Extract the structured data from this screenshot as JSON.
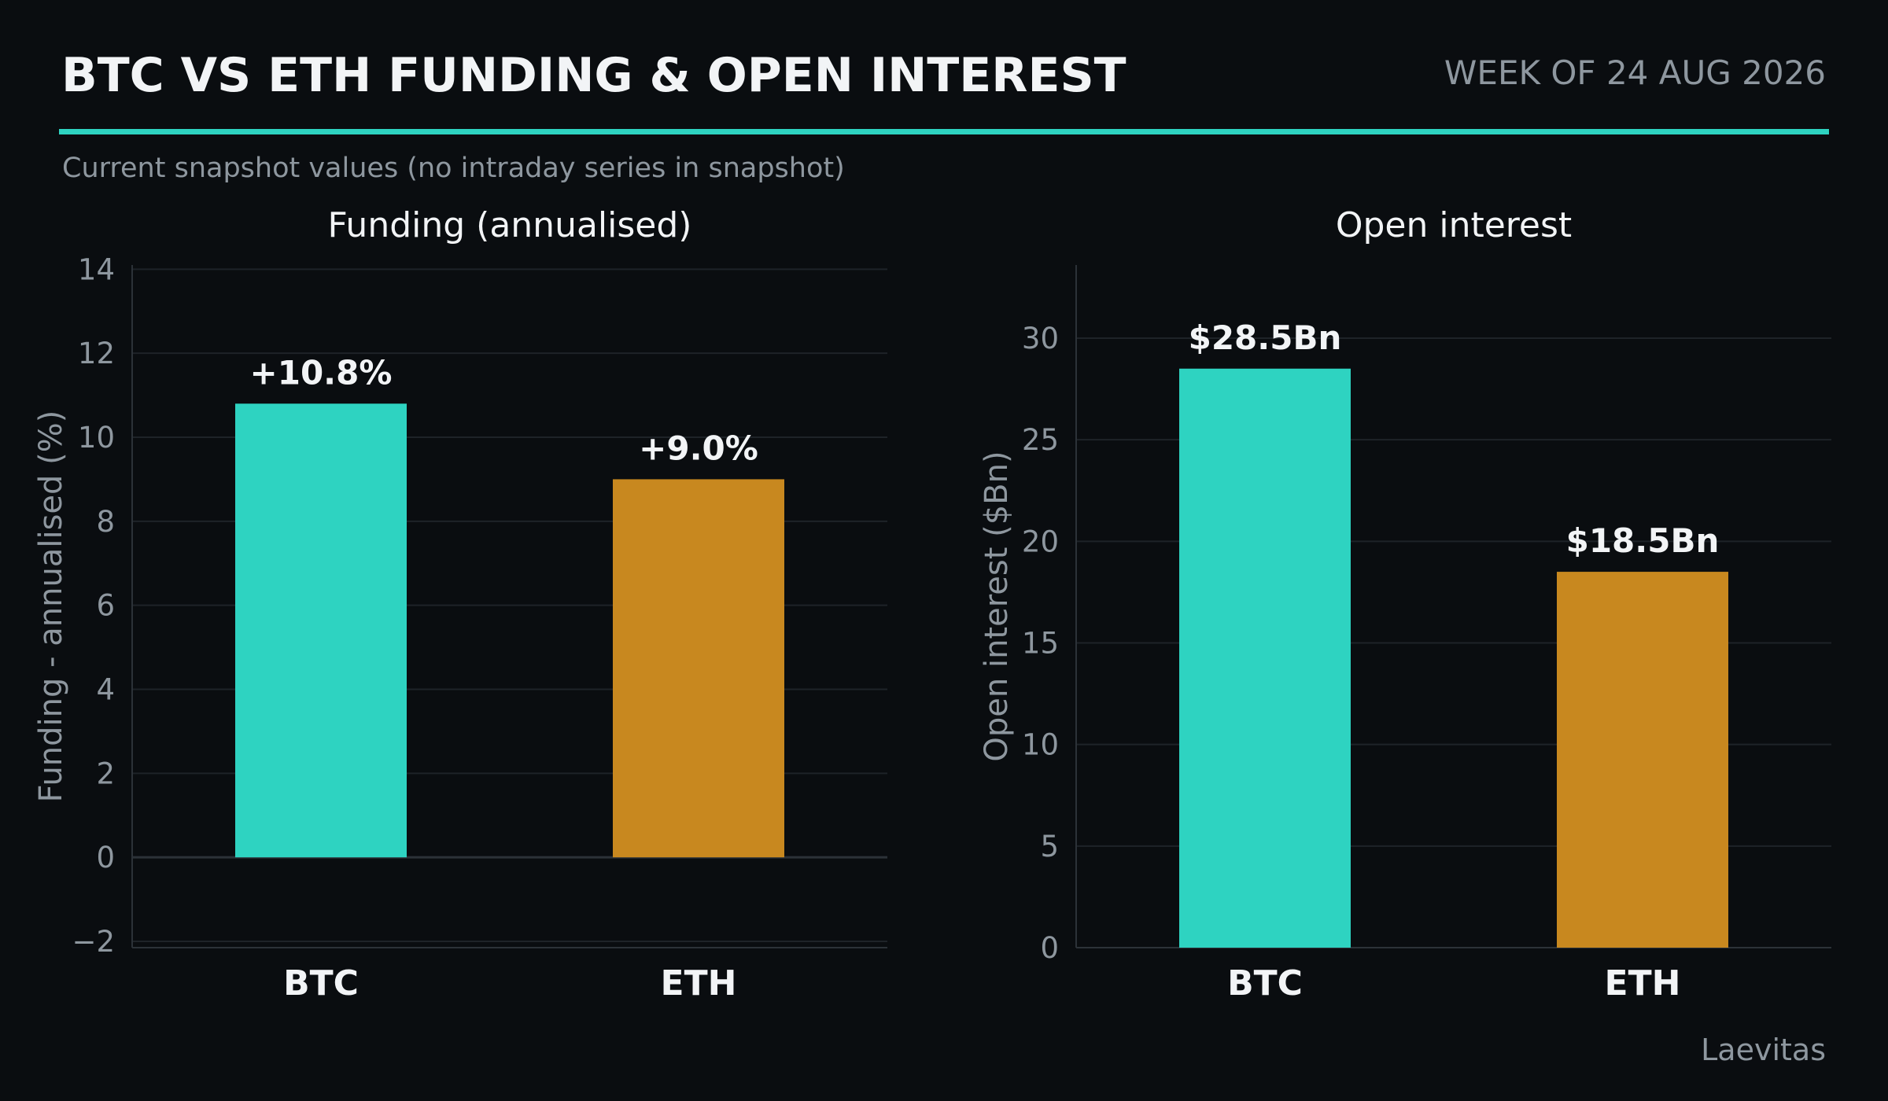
{
  "header": {
    "title": "BTC VS ETH FUNDING & OPEN INTEREST",
    "date_label": "WEEK OF 24 AUG 2026",
    "subtitle": "Current snapshot values (no intraday series in snapshot)"
  },
  "footer": {
    "source": "Laevitas"
  },
  "colors": {
    "background": "#0a0d10",
    "accent": "#2ed3c1",
    "btc": "#2ed3c1",
    "eth": "#c8881f",
    "text": "#f2f4f6",
    "muted": "#8e979f",
    "grid": "#1e2328",
    "axis": "#2c3238"
  },
  "chart_data": [
    {
      "type": "bar",
      "title": "Funding (annualised)",
      "xlabel": "",
      "ylabel": "Funding - annualised (%)",
      "categories": [
        "BTC",
        "ETH"
      ],
      "values": [
        10.8,
        9.0
      ],
      "data_labels": [
        "+10.8%",
        "+9.0%"
      ],
      "ylim": [
        -2.15,
        14.1
      ],
      "yticks": [
        -2,
        0,
        2,
        4,
        6,
        8,
        10,
        12,
        14
      ],
      "ytick_labels": [
        "−2",
        "0",
        "2",
        "4",
        "6",
        "8",
        "10",
        "12",
        "14"
      ],
      "grid": true,
      "legend": "none"
    },
    {
      "type": "bar",
      "title": "Open interest",
      "xlabel": "",
      "ylabel": "Open interest ($Bn)",
      "categories": [
        "BTC",
        "ETH"
      ],
      "values": [
        28.5,
        18.5
      ],
      "data_labels": [
        "$28.5Bn",
        "$18.5Bn"
      ],
      "ylim": [
        0,
        33.6
      ],
      "yticks": [
        0,
        5,
        10,
        15,
        20,
        25,
        30
      ],
      "ytick_labels": [
        "0",
        "5",
        "10",
        "15",
        "20",
        "25",
        "30"
      ],
      "grid": true,
      "legend": "none"
    }
  ]
}
